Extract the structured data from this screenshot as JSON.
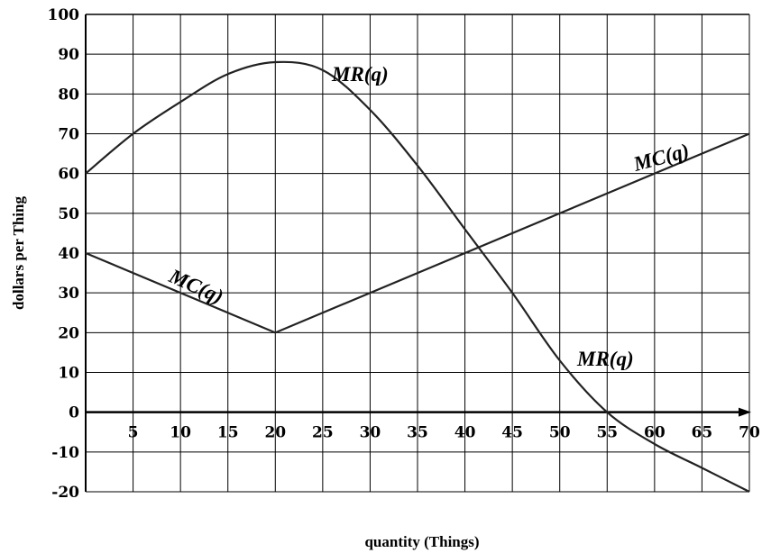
{
  "chart_data": {
    "type": "line",
    "xlabel": "quantity (Things)",
    "ylabel": "dollars per Thing",
    "xlim": [
      0,
      70
    ],
    "ylim": [
      -20,
      100
    ],
    "x_ticks": [
      5,
      10,
      15,
      20,
      25,
      30,
      35,
      40,
      45,
      50,
      55,
      60,
      65,
      70
    ],
    "y_ticks": [
      100,
      90,
      80,
      70,
      60,
      50,
      40,
      30,
      20,
      10,
      0,
      -10,
      -20
    ],
    "grid": true,
    "series": [
      {
        "name": "MR(q)",
        "x": [
          0,
          5,
          10,
          15,
          20,
          25,
          30,
          35,
          40,
          45,
          50,
          55,
          60,
          65,
          70
        ],
        "y": [
          60,
          70,
          78,
          85,
          88,
          86,
          76,
          62,
          46,
          30,
          13,
          0,
          -8,
          -14,
          -20
        ]
      },
      {
        "name": "MC(q)",
        "x": [
          0,
          20,
          70
        ],
        "y": [
          40,
          20,
          70
        ]
      }
    ],
    "annotations": [
      "MR(q)",
      "MC(q)",
      "MC(q)",
      "MR(q)"
    ]
  }
}
